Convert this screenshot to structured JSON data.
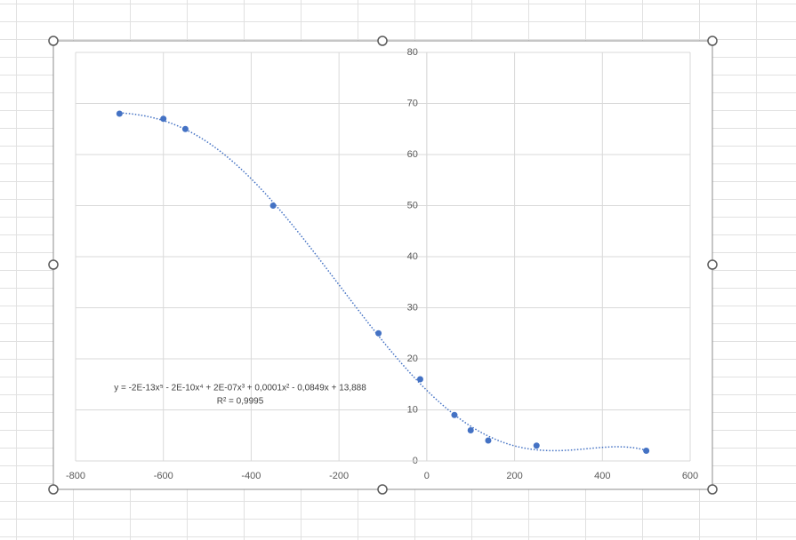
{
  "chart_data": {
    "type": "scatter",
    "x": [
      -700,
      -600,
      -550,
      -350,
      -110,
      -15,
      63,
      100,
      140,
      250,
      500
    ],
    "series": [
      {
        "color": "#4472c4",
        "values": [
          68,
          67,
          65,
          50,
          25,
          16,
          9,
          6,
          4,
          3,
          2
        ]
      }
    ],
    "trendline": {
      "type": "polynomial",
      "order": 5,
      "equation": "y = -2E-13x⁵ - 2E-10x⁴ + 2E-07x³ + 0,0001x² - 0,0849x + 13,888",
      "r_squared": "R² = 0,9995"
    },
    "xlim": [
      -800,
      600
    ],
    "xticks": [
      -800,
      -600,
      -400,
      -200,
      0,
      200,
      400,
      600
    ],
    "ylim": [
      0,
      80
    ],
    "yticks": [
      0,
      10,
      20,
      30,
      40,
      50,
      60,
      70,
      80
    ],
    "grid": true
  }
}
